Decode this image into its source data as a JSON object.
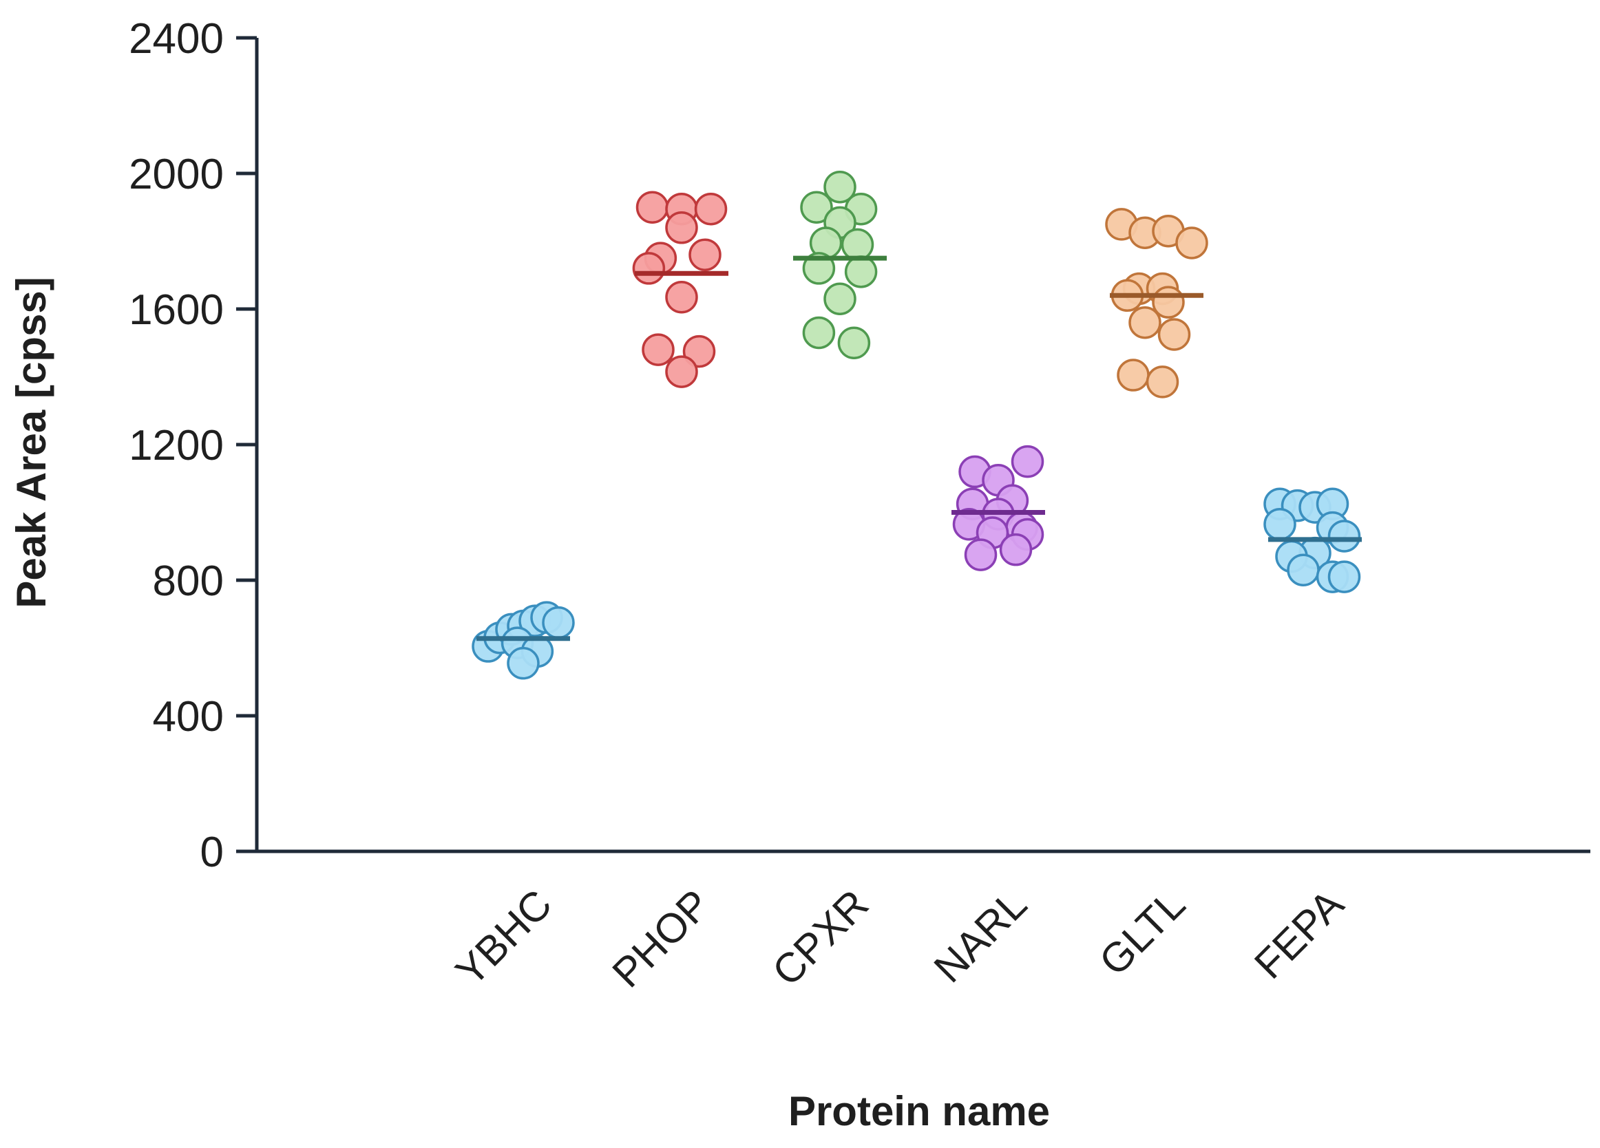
{
  "chart_data": {
    "type": "scatter",
    "subtype": "dot-plot-with-mean",
    "title": "",
    "xlabel": "Protein name",
    "ylabel": "Peak Area [cpss]",
    "ylim": [
      0,
      2400
    ],
    "yticks": [
      0,
      400,
      800,
      1200,
      1600,
      2000,
      2400
    ],
    "yticks_labels": [
      "0",
      "400",
      "800",
      "1200",
      "1600",
      "2000",
      "2400"
    ],
    "categories": [
      "YBHC",
      "PHOP",
      "CPXR",
      "NARL",
      "GLTL",
      "FEPA"
    ],
    "grid": false,
    "legend": "none",
    "series": [
      {
        "category": "YBHC",
        "fill": "#a9ddf5",
        "stroke": "#3a8fbf",
        "line_color": "#2f6f8f",
        "mean": 628,
        "points": [
          [
            -0.3,
            605
          ],
          [
            -0.2,
            630
          ],
          [
            -0.1,
            655
          ],
          [
            0.0,
            665
          ],
          [
            0.1,
            680
          ],
          [
            0.2,
            690
          ],
          [
            0.3,
            675
          ],
          [
            -0.05,
            615
          ],
          [
            0.12,
            590
          ],
          [
            0.0,
            555
          ]
        ]
      },
      {
        "category": "PHOP",
        "fill": "#f59e9e",
        "stroke": "#c0393b",
        "line_color": "#a52a2a",
        "mean": 1705,
        "points": [
          [
            -0.25,
            1900
          ],
          [
            0.0,
            1895
          ],
          [
            0.25,
            1895
          ],
          [
            0.0,
            1840
          ],
          [
            -0.18,
            1750
          ],
          [
            0.2,
            1760
          ],
          [
            -0.28,
            1720
          ],
          [
            0.0,
            1635
          ],
          [
            -0.2,
            1480
          ],
          [
            0.15,
            1475
          ],
          [
            0.0,
            1415
          ]
        ]
      },
      {
        "category": "CPXR",
        "fill": "#bfe6b4",
        "stroke": "#4f9a4f",
        "line_color": "#3d7f3d",
        "mean": 1750,
        "points": [
          [
            0.0,
            1960
          ],
          [
            -0.2,
            1900
          ],
          [
            0.18,
            1895
          ],
          [
            0.0,
            1855
          ],
          [
            -0.12,
            1795
          ],
          [
            0.15,
            1790
          ],
          [
            -0.18,
            1720
          ],
          [
            0.18,
            1710
          ],
          [
            0.0,
            1630
          ],
          [
            -0.18,
            1530
          ],
          [
            0.12,
            1500
          ]
        ]
      },
      {
        "category": "NARL",
        "fill": "#d7a0f0",
        "stroke": "#8b3fb5",
        "line_color": "#6e2b8f",
        "mean": 1000,
        "points": [
          [
            0.25,
            1150
          ],
          [
            -0.2,
            1120
          ],
          [
            0.0,
            1095
          ],
          [
            0.12,
            1035
          ],
          [
            -0.22,
            1025
          ],
          [
            0.0,
            995
          ],
          [
            -0.25,
            965
          ],
          [
            0.2,
            955
          ],
          [
            -0.05,
            940
          ],
          [
            0.25,
            935
          ],
          [
            0.15,
            890
          ],
          [
            -0.15,
            875
          ]
        ]
      },
      {
        "category": "GLTL",
        "fill": "#f7c8a2",
        "stroke": "#c0753a",
        "line_color": "#9a5a2a",
        "mean": 1640,
        "points": [
          [
            -0.3,
            1850
          ],
          [
            -0.1,
            1825
          ],
          [
            0.1,
            1830
          ],
          [
            0.3,
            1795
          ],
          [
            -0.15,
            1660
          ],
          [
            0.05,
            1660
          ],
          [
            -0.25,
            1640
          ],
          [
            0.1,
            1620
          ],
          [
            -0.1,
            1560
          ],
          [
            0.15,
            1525
          ],
          [
            -0.2,
            1405
          ],
          [
            0.05,
            1385
          ]
        ]
      },
      {
        "category": "FEPA",
        "fill": "#a9ddf5",
        "stroke": "#3a8fbf",
        "line_color": "#2f6f8f",
        "mean": 920,
        "points": [
          [
            -0.3,
            1025
          ],
          [
            -0.15,
            1020
          ],
          [
            0.0,
            1015
          ],
          [
            0.15,
            1025
          ],
          [
            -0.3,
            965
          ],
          [
            0.15,
            955
          ],
          [
            0.25,
            930
          ],
          [
            0.0,
            880
          ],
          [
            -0.2,
            870
          ],
          [
            -0.1,
            830
          ],
          [
            0.15,
            810
          ],
          [
            0.25,
            810
          ]
        ]
      }
    ]
  }
}
